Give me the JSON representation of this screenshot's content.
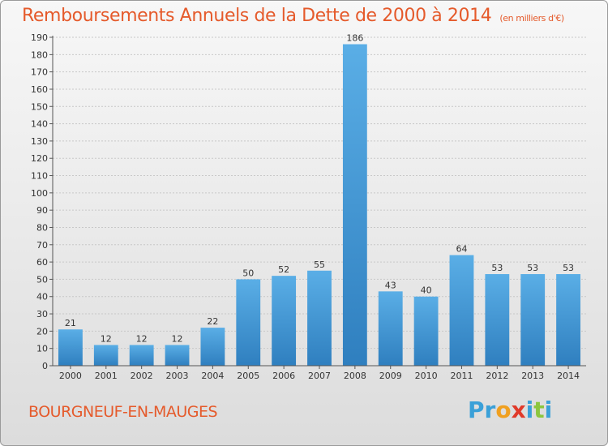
{
  "header": {
    "title": "Remboursements Annuels de la Dette de 2000 à 2014",
    "subtitle": "(en milliers d'€)"
  },
  "footer": {
    "commune": "BOURGNEUF-EN-MAUGES",
    "logo_letters": [
      "P",
      "r",
      "o",
      "x",
      "i",
      "t",
      "i"
    ],
    "logo_colors": [
      "#3aa0d8",
      "#3aa0d8",
      "#f0a020",
      "#e03a2a",
      "#3aa0d8",
      "#8cc63f",
      "#3aa0d8"
    ]
  },
  "colors": {
    "bar_light": "#5aaee6",
    "bar_dark": "#2f7fbf",
    "grid": "#c8c8c8",
    "title": "#e55a2b"
  },
  "chart_data": {
    "type": "bar",
    "title": "Remboursements Annuels de la Dette de 2000 à 2014",
    "subtitle": "(en milliers d'€)",
    "categories": [
      "2000",
      "2001",
      "2002",
      "2003",
      "2004",
      "2005",
      "2006",
      "2007",
      "2008",
      "2009",
      "2010",
      "2011",
      "2012",
      "2013",
      "2014"
    ],
    "values": [
      21,
      12,
      12,
      12,
      22,
      50,
      52,
      55,
      186,
      43,
      40,
      64,
      53,
      53,
      53
    ],
    "ylim": [
      0,
      190
    ],
    "ytick_step": 10,
    "grid": true,
    "xlabel": "",
    "ylabel": ""
  }
}
